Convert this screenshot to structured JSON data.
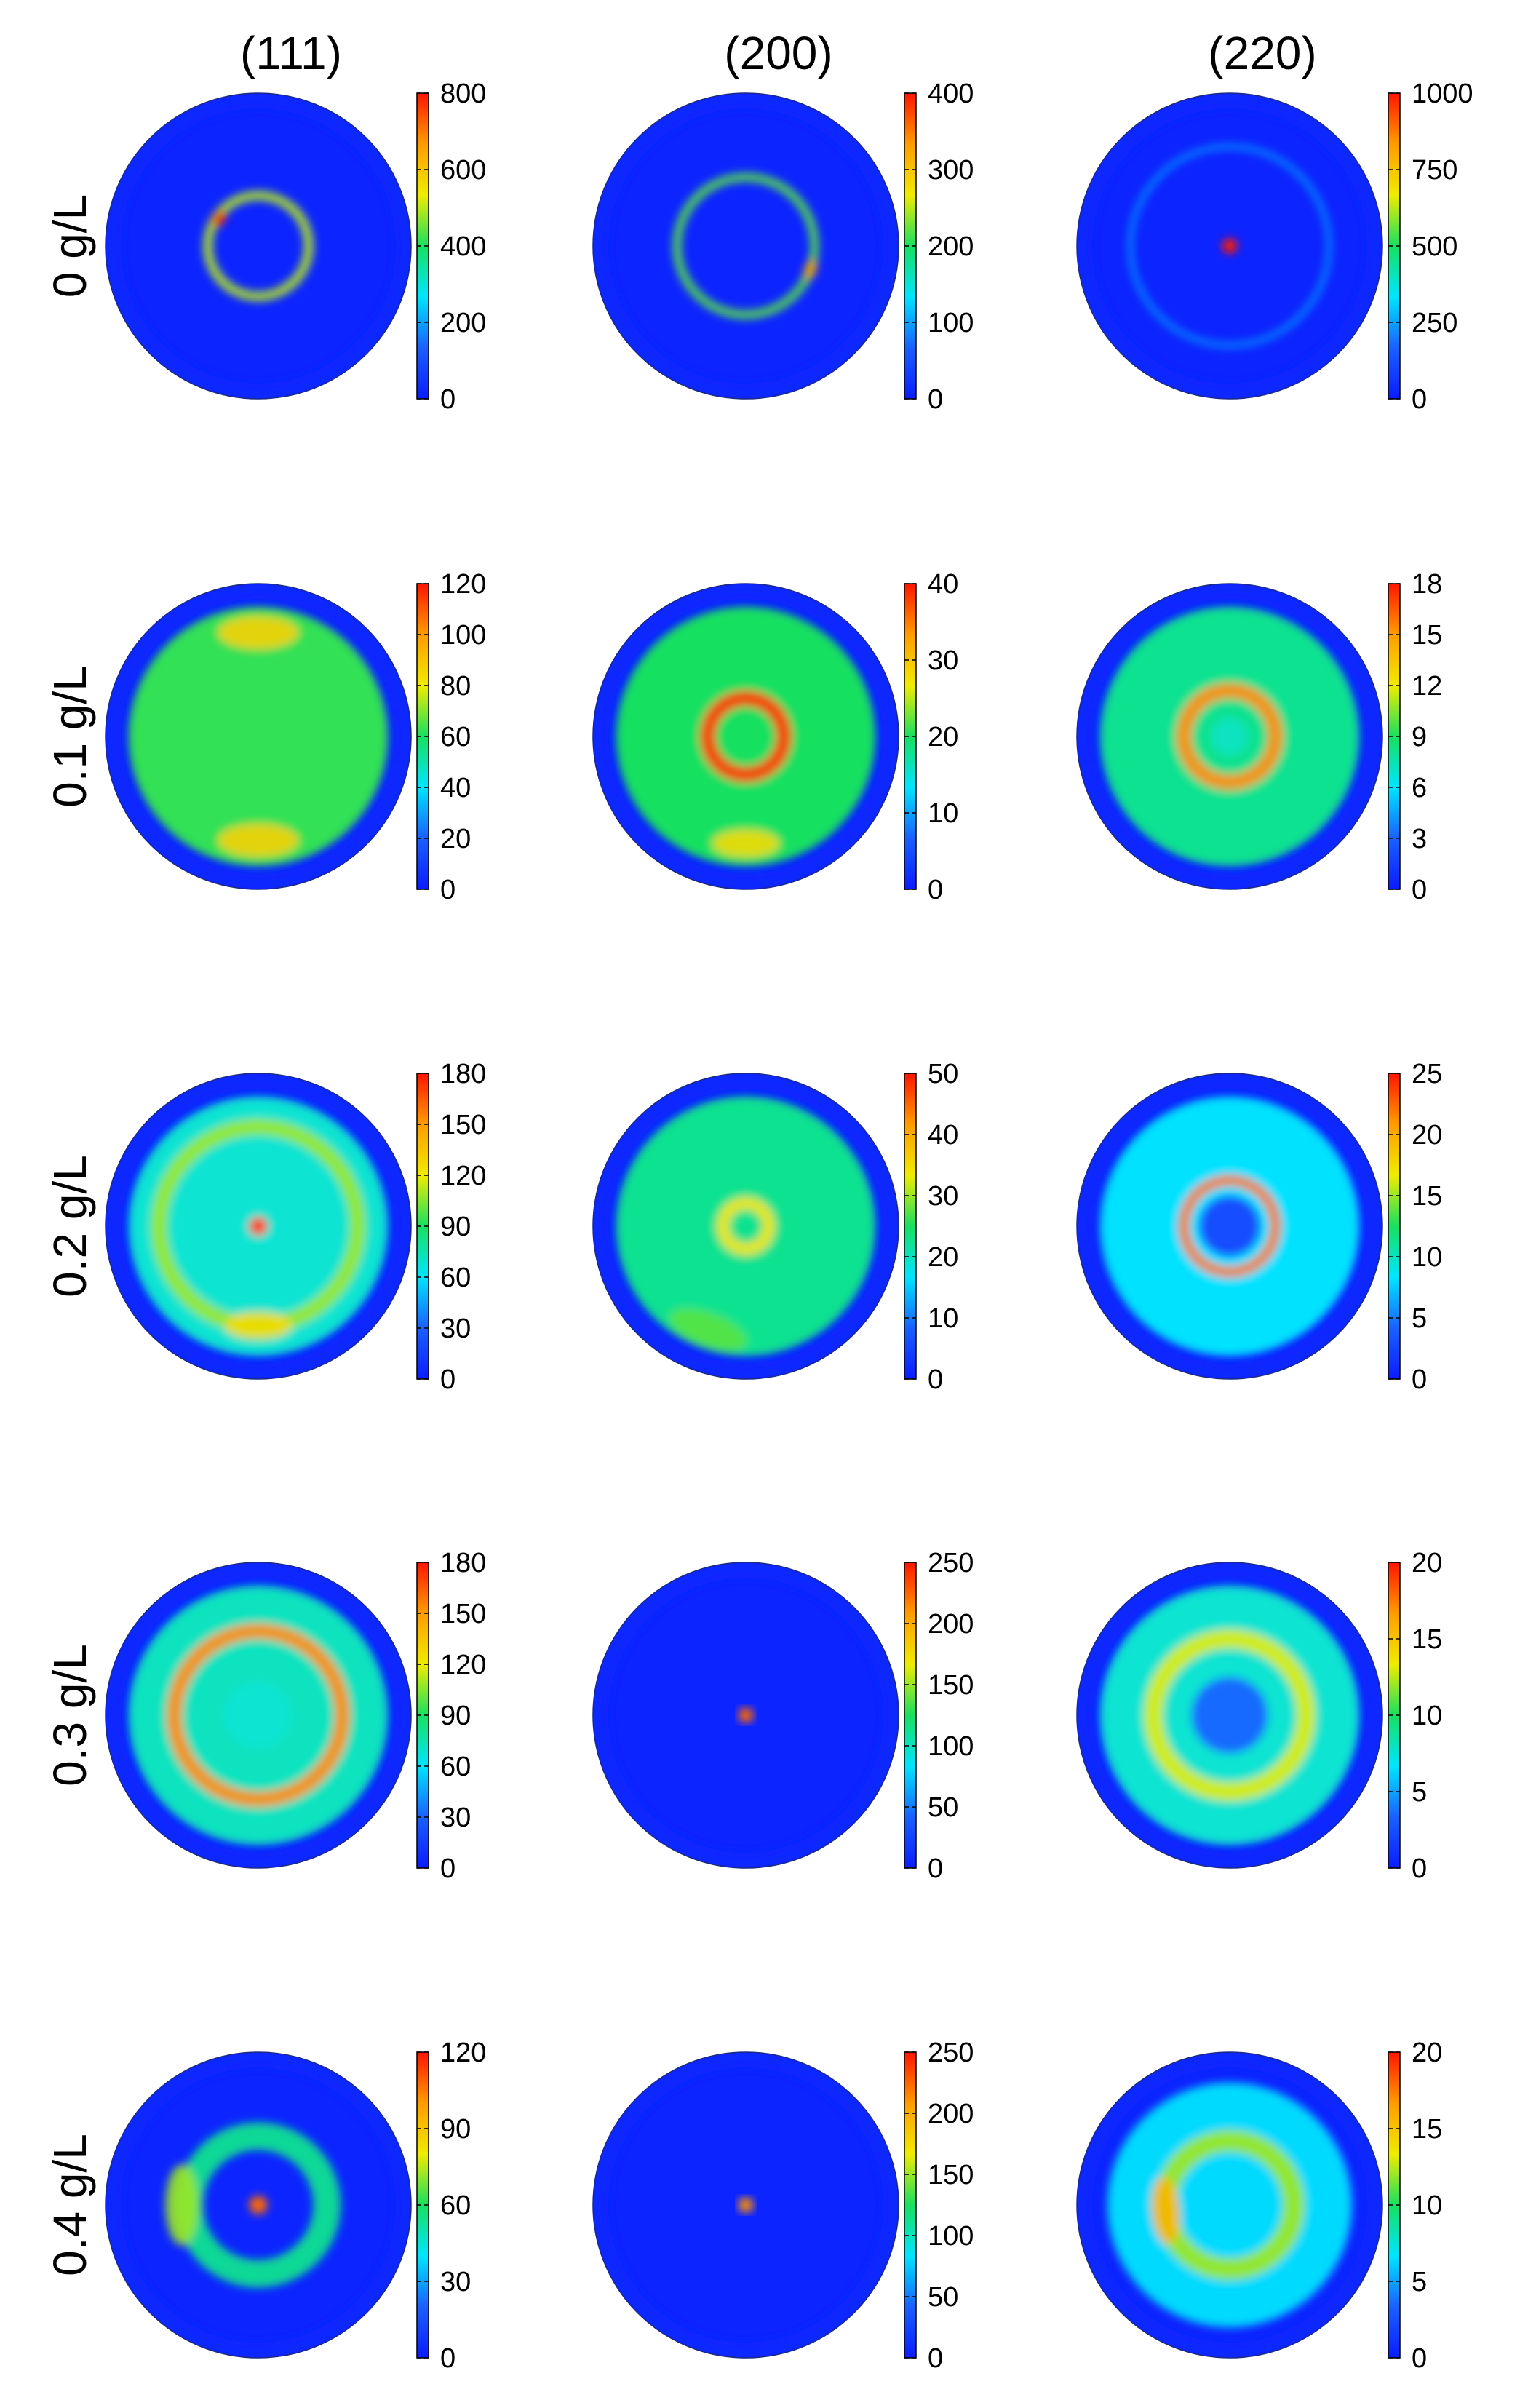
{
  "colormap": {
    "stops": [
      "#0a1cff",
      "#1a60ff",
      "#00e5ff",
      "#18e060",
      "#f0ec00",
      "#ff9c00",
      "#ff1500"
    ],
    "outline": "#1a2b86"
  },
  "chart_data": {
    "type": "heatmap",
    "figure_kind": "pole figure grid",
    "columns": [
      "(111)",
      "(200)",
      "(220)"
    ],
    "rows": [
      "0 g/L",
      "0.1 g/L",
      "0.2 g/L",
      "0.3 g/L",
      "0.4 g/L"
    ],
    "panels": [
      {
        "row": "0 g/L",
        "column": "(111)",
        "colorbar_ticks": [
          "800",
          "600",
          "400",
          "200",
          "0"
        ],
        "range": [
          0,
          800
        ],
        "bands": [
          {
            "r": 0.33,
            "w": 0.06,
            "v": 0.62
          },
          {
            "r": 0.31,
            "w": 0.025,
            "v": 0.97,
            "angle": 215
          }
        ]
      },
      {
        "row": "0 g/L",
        "column": "(200)",
        "colorbar_ticks": [
          "400",
          "300",
          "200",
          "100",
          "0"
        ],
        "range": [
          0,
          400
        ],
        "bands": [
          {
            "r": 0.45,
            "w": 0.055,
            "v": 0.55
          },
          {
            "r": 0.45,
            "w": 0.03,
            "v": 0.8,
            "angle": 20
          }
        ]
      },
      {
        "row": "0 g/L",
        "column": "(220)",
        "colorbar_ticks": [
          "1000",
          "750",
          "500",
          "250",
          "0"
        ],
        "range": [
          0,
          1000
        ],
        "bands": [
          {
            "r": 0.65,
            "w": 0.03,
            "v": 0.25
          },
          {
            "r": 0,
            "w": 0.05,
            "v": 1.0
          }
        ]
      },
      {
        "row": "0.1 g/L",
        "column": "(111)",
        "colorbar_ticks": [
          "120",
          "100",
          "80",
          "60",
          "40",
          "20",
          "0"
        ],
        "range": [
          0,
          120
        ],
        "bands": [
          {
            "r": 0.0,
            "w": 0.85,
            "v": 0.52
          },
          {
            "r": 0.68,
            "w": 0.12,
            "v": 0.72,
            "angle": 270
          },
          {
            "r": 0.68,
            "w": 0.12,
            "v": 0.72,
            "angle": 90
          }
        ]
      },
      {
        "row": "0.1 g/L",
        "column": "(200)",
        "colorbar_ticks": [
          "40",
          "30",
          "20",
          "10",
          "0"
        ],
        "range": [
          0,
          40
        ],
        "bands": [
          {
            "r": 0.0,
            "w": 0.85,
            "v": 0.5
          },
          {
            "r": 0.25,
            "w": 0.1,
            "v": 0.95
          },
          {
            "r": 0.7,
            "w": 0.1,
            "v": 0.7,
            "angle": 90
          }
        ]
      },
      {
        "row": "0.1 g/L",
        "column": "(220)",
        "colorbar_ticks": [
          "18",
          "15",
          "12",
          "9",
          "6",
          "3",
          "0"
        ],
        "range": [
          0,
          18
        ],
        "bands": [
          {
            "r": 0.0,
            "w": 0.85,
            "v": 0.45
          },
          {
            "r": 0.3,
            "w": 0.1,
            "v": 0.85
          },
          {
            "r": 0,
            "w": 0.12,
            "v": 0.4
          }
        ]
      },
      {
        "row": "0.2 g/L",
        "column": "(111)",
        "colorbar_ticks": [
          "180",
          "150",
          "120",
          "90",
          "60",
          "30",
          "0"
        ],
        "range": [
          0,
          180
        ],
        "bands": [
          {
            "r": 0.0,
            "w": 0.85,
            "v": 0.38
          },
          {
            "r": 0.65,
            "w": 0.1,
            "v": 0.6
          },
          {
            "r": 0.65,
            "w": 0.1,
            "v": 0.7,
            "angle": 90
          },
          {
            "r": 0,
            "w": 0.06,
            "v": 0.95
          }
        ]
      },
      {
        "row": "0.2 g/L",
        "column": "(200)",
        "colorbar_ticks": [
          "50",
          "40",
          "30",
          "20",
          "10",
          "0"
        ],
        "range": [
          0,
          50
        ],
        "bands": [
          {
            "r": 0.0,
            "w": 0.85,
            "v": 0.45
          },
          {
            "r": 0.15,
            "w": 0.08,
            "v": 0.68
          },
          {
            "r": 0.72,
            "w": 0.12,
            "v": 0.55,
            "angle": 110
          }
        ]
      },
      {
        "row": "0.2 g/L",
        "column": "(220)",
        "colorbar_ticks": [
          "25",
          "20",
          "15",
          "10",
          "5",
          "0"
        ],
        "range": [
          0,
          25
        ],
        "bands": [
          {
            "r": 0.0,
            "w": 0.85,
            "v": 0.33
          },
          {
            "r": 0.3,
            "w": 0.07,
            "v": 0.88
          },
          {
            "r": 0,
            "w": 0.2,
            "v": 0.12
          }
        ]
      },
      {
        "row": "0.3 g/L",
        "column": "(111)",
        "colorbar_ticks": [
          "180",
          "150",
          "120",
          "90",
          "60",
          "30",
          "0"
        ],
        "range": [
          0,
          180
        ],
        "bands": [
          {
            "r": 0.0,
            "w": 0.85,
            "v": 0.4
          },
          {
            "r": 0.55,
            "w": 0.1,
            "v": 0.85
          },
          {
            "r": 0,
            "w": 0.22,
            "v": 0.38
          }
        ]
      },
      {
        "row": "0.3 g/L",
        "column": "(200)",
        "colorbar_ticks": [
          "250",
          "200",
          "150",
          "100",
          "50",
          "0"
        ],
        "range": [
          0,
          250
        ],
        "bands": [
          {
            "r": 0,
            "w": 0.05,
            "v": 0.9
          }
        ]
      },
      {
        "row": "0.3 g/L",
        "column": "(220)",
        "colorbar_ticks": [
          "20",
          "15",
          "10",
          "5",
          "0"
        ],
        "range": [
          0,
          20
        ],
        "bands": [
          {
            "r": 0.0,
            "w": 0.85,
            "v": 0.38
          },
          {
            "r": 0.5,
            "w": 0.12,
            "v": 0.65
          },
          {
            "r": 0,
            "w": 0.25,
            "v": 0.18
          }
        ]
      },
      {
        "row": "0.4 g/L",
        "column": "(111)",
        "colorbar_ticks": [
          "120",
          "90",
          "60",
          "30",
          "0"
        ],
        "range": [
          0,
          120
        ],
        "bands": [
          {
            "r": 0.45,
            "w": 0.18,
            "v": 0.45
          },
          {
            "r": 0.5,
            "w": 0.12,
            "v": 0.6,
            "angle": 180
          },
          {
            "r": 0,
            "w": 0.06,
            "v": 0.9
          }
        ]
      },
      {
        "row": "0.4 g/L",
        "column": "(200)",
        "colorbar_ticks": [
          "250",
          "200",
          "150",
          "100",
          "50",
          "0"
        ],
        "range": [
          0,
          250
        ],
        "bands": [
          {
            "r": 0,
            "w": 0.05,
            "v": 0.85
          }
        ]
      },
      {
        "row": "0.4 g/L",
        "column": "(220)",
        "colorbar_ticks": [
          "20",
          "15",
          "10",
          "5",
          "0"
        ],
        "range": [
          0,
          20
        ],
        "bands": [
          {
            "r": 0.0,
            "w": 0.8,
            "v": 0.32
          },
          {
            "r": 0.42,
            "w": 0.14,
            "v": 0.6
          },
          {
            "r": 0.42,
            "w": 0.1,
            "v": 0.78,
            "angle": 175
          }
        ]
      }
    ]
  }
}
